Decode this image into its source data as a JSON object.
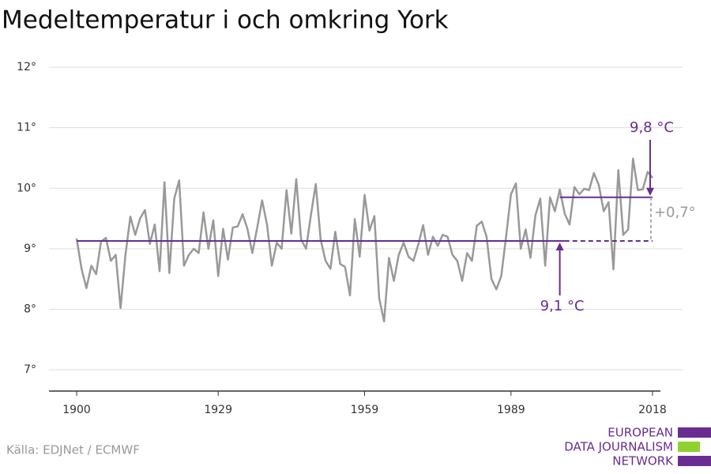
{
  "chart_data": {
    "type": "line",
    "title": "Medeltemperatur i och omkring York",
    "source": "Källa: EDJNet / ECMWF",
    "logo": [
      "EUROPEAN",
      "DATA JOURNALISM",
      "NETWORK"
    ],
    "x": [
      1900,
      1901,
      1902,
      1903,
      1904,
      1905,
      1906,
      1907,
      1908,
      1909,
      1910,
      1911,
      1912,
      1913,
      1914,
      1915,
      1916,
      1917,
      1918,
      1919,
      1920,
      1921,
      1922,
      1923,
      1924,
      1925,
      1926,
      1927,
      1928,
      1929,
      1930,
      1931,
      1932,
      1933,
      1934,
      1935,
      1936,
      1937,
      1938,
      1939,
      1940,
      1941,
      1942,
      1943,
      1944,
      1945,
      1946,
      1947,
      1948,
      1949,
      1950,
      1951,
      1952,
      1953,
      1954,
      1955,
      1956,
      1957,
      1958,
      1959,
      1960,
      1961,
      1962,
      1963,
      1964,
      1965,
      1966,
      1967,
      1968,
      1969,
      1970,
      1971,
      1972,
      1973,
      1974,
      1975,
      1976,
      1977,
      1978,
      1979,
      1980,
      1981,
      1982,
      1983,
      1984,
      1985,
      1986,
      1987,
      1988,
      1989,
      1990,
      1991,
      1992,
      1993,
      1994,
      1995,
      1996,
      1997,
      1998,
      1999,
      2000,
      2001,
      2002,
      2003,
      2004,
      2005,
      2006,
      2007,
      2008,
      2009,
      2010,
      2011,
      2012,
      2013,
      2014,
      2015,
      2016,
      2017,
      2018
    ],
    "series": [
      {
        "color": "#999999",
        "values": [
          9.17,
          8.67,
          8.35,
          8.72,
          8.58,
          9.12,
          9.18,
          8.8,
          8.9,
          8.02,
          8.9,
          9.53,
          9.23,
          9.5,
          9.64,
          9.08,
          9.4,
          8.63,
          10.1,
          8.6,
          9.83,
          10.13,
          8.72,
          8.9,
          9.0,
          8.93,
          9.6,
          9.0,
          9.47,
          8.55,
          9.33,
          8.82,
          9.35,
          9.37,
          9.57,
          9.33,
          8.93,
          9.35,
          9.8,
          9.4,
          8.72,
          9.1,
          9.0,
          9.97,
          9.25,
          10.15,
          9.15,
          9.0,
          9.55,
          10.07,
          9.15,
          8.8,
          8.67,
          9.28,
          8.75,
          8.7,
          8.23,
          9.49,
          8.87,
          9.89,
          9.3,
          9.54,
          8.18,
          7.8,
          8.85,
          8.47,
          8.9,
          9.1,
          8.87,
          8.8,
          9.07,
          9.39,
          8.9,
          9.2,
          9.05,
          9.23,
          9.2,
          8.9,
          8.8,
          8.47,
          8.93,
          8.8,
          9.38,
          9.45,
          9.2,
          8.5,
          8.33,
          8.55,
          9.2,
          9.9,
          10.08,
          9.0,
          9.32,
          8.85,
          9.55,
          9.83,
          8.72,
          9.85,
          9.62,
          9.98,
          9.58,
          9.4,
          10.02,
          9.9,
          9.99,
          9.97,
          10.25,
          10.05,
          9.62,
          9.77,
          8.66,
          10.3,
          9.23,
          9.32,
          10.49,
          9.97,
          9.98,
          10.27,
          10.17
        ]
      }
    ],
    "references": [
      {
        "label": "9,1 °C",
        "value": 9.13,
        "color": "#6a2c91",
        "x_range": [
          1900,
          2018
        ],
        "solid_until": 2000
      },
      {
        "label": "9,8 °C",
        "value": 9.85,
        "color": "#6a2c91",
        "x_range": [
          1999,
          2018
        ]
      }
    ],
    "difference_label": "+0,7°",
    "xlim": [
      1897,
      2021
    ],
    "ylim": [
      6.65,
      12.3
    ],
    "xticks": [
      1900,
      1929,
      1959,
      1989,
      2018
    ],
    "yticks": [
      {
        "value": 7,
        "label": "7°"
      },
      {
        "value": 8,
        "label": "8°"
      },
      {
        "value": 9,
        "label": "9°"
      },
      {
        "value": 10,
        "label": "10°"
      },
      {
        "value": 11,
        "label": "11°"
      },
      {
        "value": 12,
        "label": "12°"
      }
    ],
    "grid": true
  }
}
